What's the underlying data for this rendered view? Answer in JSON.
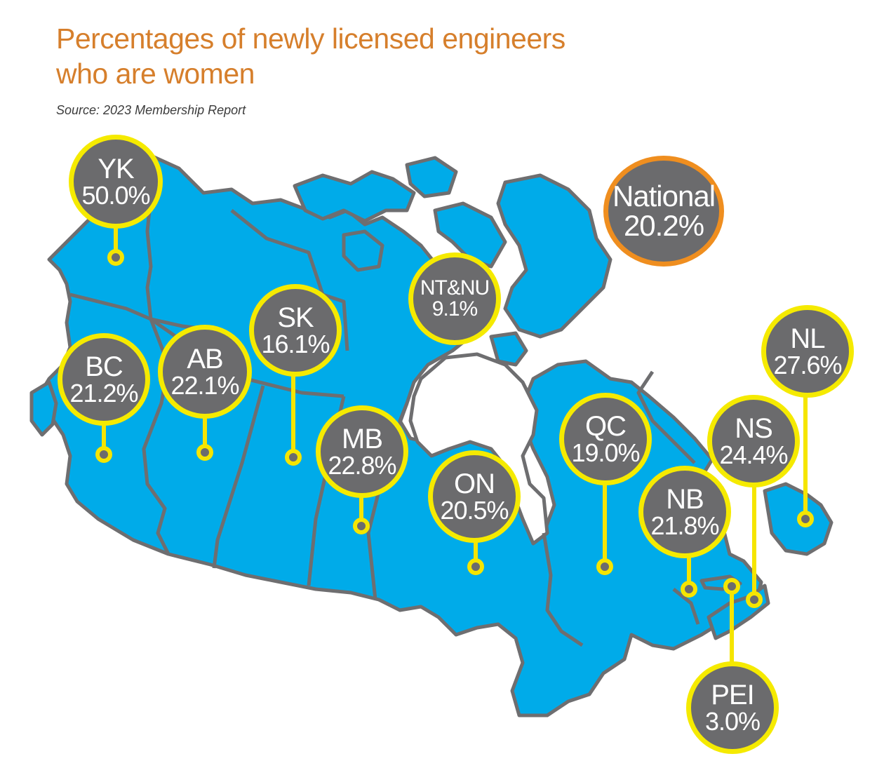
{
  "title": {
    "line1": "Percentages of newly licensed engineers",
    "line2": "who are women"
  },
  "source": "Source: 2023 Membership Report",
  "colors": {
    "title": "#d67f2c",
    "land": "#00abe9",
    "borders": "#6e6e70",
    "bubble_fill": "#6b6b6d",
    "bubble_ring": "#f5ea00",
    "national_ring": "#ef8e1f",
    "text": "#ffffff"
  },
  "regions": [
    {
      "abbr": "YK",
      "value": "50.0%"
    },
    {
      "abbr": "BC",
      "value": "21.2%"
    },
    {
      "abbr": "AB",
      "value": "22.1%"
    },
    {
      "abbr": "SK",
      "value": "16.1%"
    },
    {
      "abbr": "NT&NU",
      "value": "9.1%"
    },
    {
      "abbr": "MB",
      "value": "22.8%"
    },
    {
      "abbr": "ON",
      "value": "20.5%"
    },
    {
      "abbr": "QC",
      "value": "19.0%"
    },
    {
      "abbr": "NB",
      "value": "21.8%"
    },
    {
      "abbr": "NS",
      "value": "24.4%"
    },
    {
      "abbr": "NL",
      "value": "27.6%"
    },
    {
      "abbr": "PEI",
      "value": "3.0%"
    }
  ],
  "national": {
    "abbr": "National",
    "value": "20.2%"
  }
}
